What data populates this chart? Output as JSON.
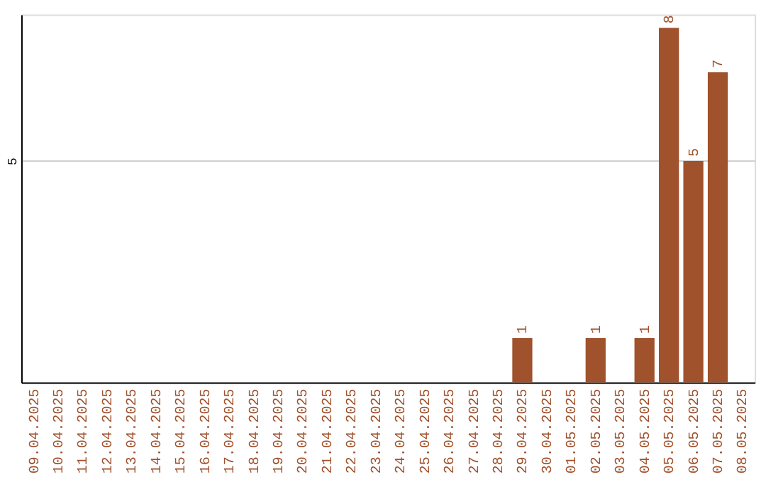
{
  "chart_data": {
    "type": "bar",
    "categories": [
      "09.04.2025",
      "10.04.2025",
      "11.04.2025",
      "12.04.2025",
      "13.04.2025",
      "14.04.2025",
      "15.04.2025",
      "16.04.2025",
      "17.04.2025",
      "18.04.2025",
      "19.04.2025",
      "20.04.2025",
      "21.04.2025",
      "22.04.2025",
      "23.04.2025",
      "24.04.2025",
      "25.04.2025",
      "26.04.2025",
      "27.04.2025",
      "28.04.2025",
      "29.04.2025",
      "30.04.2025",
      "01.05.2025",
      "02.05.2025",
      "03.05.2025",
      "04.05.2025",
      "05.05.2025",
      "06.05.2025",
      "07.05.2025",
      "08.05.2025"
    ],
    "values": [
      null,
      null,
      null,
      null,
      null,
      null,
      null,
      null,
      null,
      null,
      null,
      null,
      null,
      null,
      null,
      null,
      null,
      null,
      null,
      null,
      1,
      null,
      null,
      1,
      null,
      1,
      8,
      5,
      7,
      null
    ],
    "data_labels": true,
    "color": "#a0522d",
    "ylim": [
      0,
      8.3
    ],
    "yticks": [
      5
    ],
    "grid": "y"
  }
}
